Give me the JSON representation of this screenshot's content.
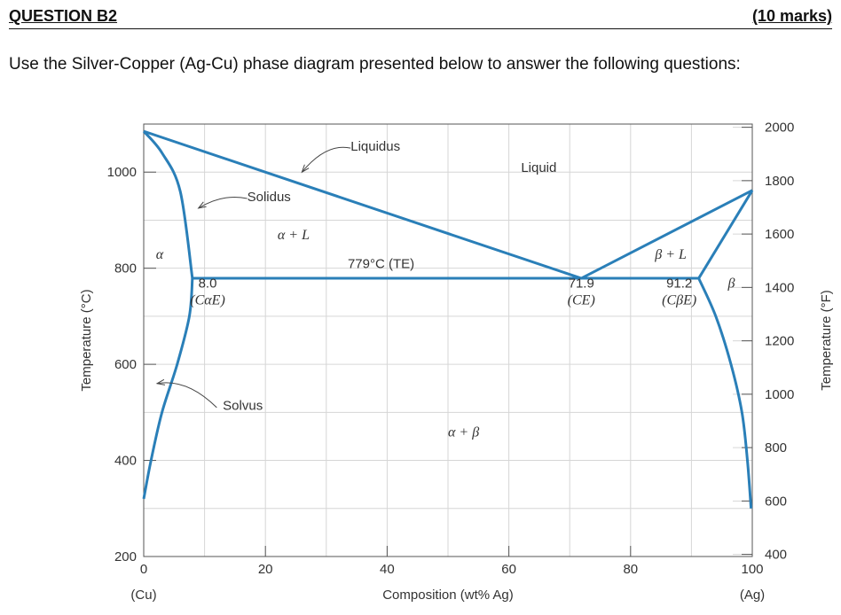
{
  "question": {
    "title": "QUESTION B2",
    "marks": "(10 marks)",
    "instruction": "Use the Silver-Copper (Ag-Cu) phase diagram presented below to answer the following questions:"
  },
  "chart_data": {
    "type": "line",
    "title": "",
    "xlabel": "Composition (wt% Ag)",
    "ylabel": "Temperature (°C)",
    "y2label": "Temperature (°F)",
    "xlim": [
      0,
      100
    ],
    "ylim": [
      200,
      1100
    ],
    "y2lim": [
      392,
      2012
    ],
    "x_ticks": [
      "0",
      "20",
      "40",
      "60",
      "80",
      "100"
    ],
    "x_tick_values": [
      0,
      20,
      40,
      60,
      80,
      100
    ],
    "y_ticks": [
      "200",
      "400",
      "600",
      "800",
      "1000"
    ],
    "y_tick_values": [
      200,
      400,
      600,
      800,
      1000
    ],
    "y2_ticks": [
      "400",
      "600",
      "800",
      "1000",
      "1200",
      "1400",
      "1600",
      "1800",
      "2000"
    ],
    "y2_tick_values": [
      400,
      600,
      800,
      1000,
      1200,
      1400,
      1600,
      1800,
      2000
    ],
    "x_end_labels": {
      "left": "(Cu)",
      "right": "(Ag)"
    },
    "grid": true,
    "line_color": "#2a7fb8",
    "series": [
      {
        "name": "Liquidus",
        "values": [
          [
            0,
            1085
          ],
          [
            71.9,
            779
          ],
          [
            100,
            962
          ]
        ]
      },
      {
        "name": "Solidus",
        "values": [
          [
            0,
            1085
          ],
          [
            3,
            1040
          ],
          [
            6,
            960
          ],
          [
            8.0,
            779
          ]
        ],
        "values_beta": [
          [
            91.2,
            779
          ],
          [
            100,
            962
          ]
        ]
      },
      {
        "name": "Solvus",
        "values": [
          [
            8.0,
            779
          ],
          [
            7.5,
            700
          ],
          [
            5.5,
            600
          ],
          [
            3,
            500
          ],
          [
            1.2,
            400
          ],
          [
            0,
            320
          ]
        ],
        "values_beta": [
          [
            91.2,
            779
          ],
          [
            94,
            700
          ],
          [
            96.5,
            600
          ],
          [
            98.3,
            500
          ],
          [
            99.2,
            400
          ],
          [
            99.8,
            300
          ]
        ]
      },
      {
        "name": "Eutectic isotherm",
        "values": [
          [
            8.0,
            779
          ],
          [
            91.2,
            779
          ]
        ]
      }
    ],
    "annotations": [
      {
        "text": "Liquidus",
        "x": 34,
        "y": 1045
      },
      {
        "text": "Solidus",
        "x": 17,
        "y": 940
      },
      {
        "text": "Solvus",
        "x": 13,
        "y": 505
      },
      {
        "text": "Liquid",
        "x": 62,
        "y": 1000
      },
      {
        "text": "α",
        "x": 2,
        "y": 820
      },
      {
        "text": "α + L",
        "x": 22,
        "y": 860
      },
      {
        "text": "β + L",
        "x": 84,
        "y": 820
      },
      {
        "text": "β",
        "x": 96,
        "y": 760
      },
      {
        "text": "α + β",
        "x": 50,
        "y": 450
      },
      {
        "text": "779°C (TE)",
        "x": 39,
        "y": 800
      },
      {
        "text": "8.0",
        "x": 10.5,
        "y": 760
      },
      {
        "text": "(CαE)",
        "x": 10.5,
        "y": 725
      },
      {
        "text": "71.9",
        "x": 71.9,
        "y": 760
      },
      {
        "text": "(CE)",
        "x": 71.9,
        "y": 725
      },
      {
        "text": "91.2",
        "x": 88,
        "y": 760
      },
      {
        "text": "(CβE)",
        "x": 88,
        "y": 725
      }
    ]
  }
}
